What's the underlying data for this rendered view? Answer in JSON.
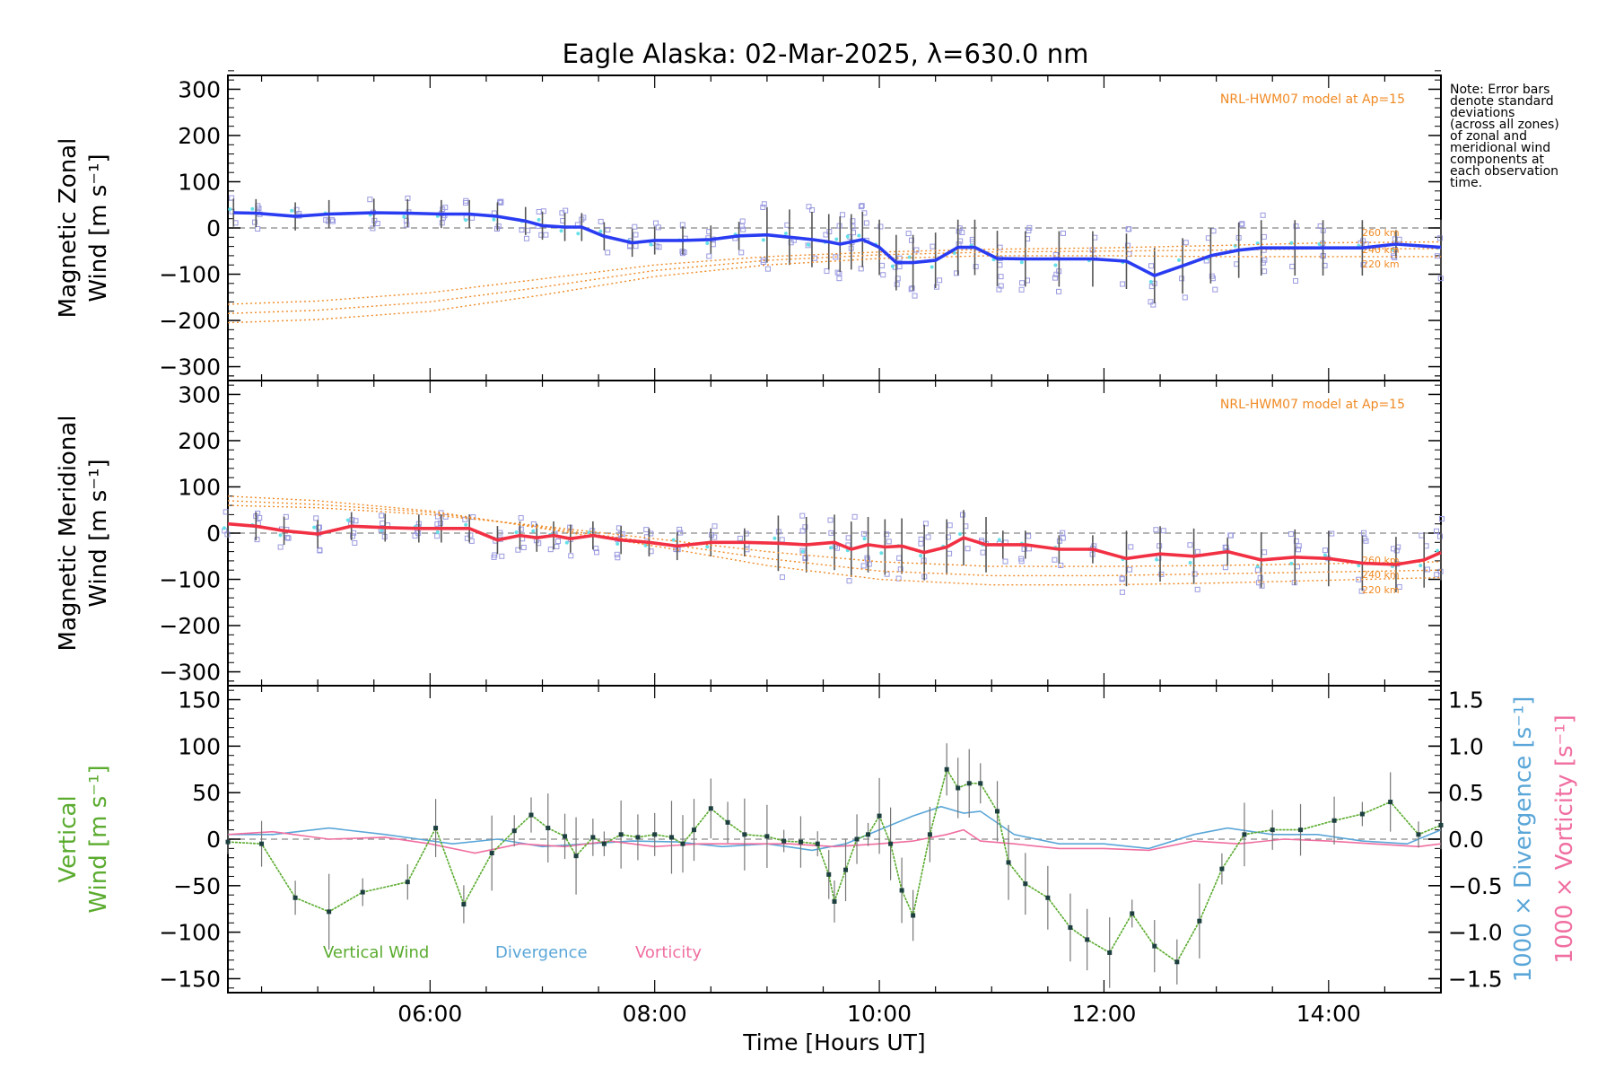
{
  "title": "Eagle Alaska: 02-Mar-2025, λ=630.0 nm",
  "note": [
    "Note: Error bars",
    "denote standard",
    "deviations",
    "(across all zones)",
    "of zonal and",
    "meridional wind",
    "components at",
    "each observation",
    "time."
  ],
  "colors": {
    "zonal": "#2a3cf2",
    "meridional": "#f23043",
    "vertical": "#5aab2e",
    "divergence": "#5aa6d8",
    "vorticity": "#f06ea0",
    "model": "#f08a24",
    "scatter": "#9a9ae0",
    "errorbar": "#555555",
    "cyan_point": "#66e0e8"
  },
  "chart_data": [
    {
      "type": "line",
      "panel": "zonal",
      "ylabel_line1": "Magnetic Zonal",
      "ylabel_line2": "Wind [m s⁻¹]",
      "ylim": [
        -330,
        330
      ],
      "yticks": [
        300,
        200,
        100,
        0,
        -100,
        -200,
        -300
      ],
      "xlim": [
        4.2,
        15.0
      ],
      "model_label": "NRL-HWM07 model at Ap=15",
      "model_alt_labels": [
        "260 km",
        "240 km",
        "220 km"
      ],
      "series": [
        {
          "name": "Zonal wind",
          "x": [
            4.25,
            4.45,
            4.8,
            5.1,
            5.5,
            5.8,
            6.1,
            6.35,
            6.6,
            6.85,
            7.0,
            7.2,
            7.35,
            7.55,
            7.8,
            8.0,
            8.25,
            8.5,
            8.75,
            9.0,
            9.2,
            9.4,
            9.55,
            9.65,
            9.75,
            9.85,
            10.0,
            10.15,
            10.3,
            10.5,
            10.7,
            10.85,
            11.05,
            11.3,
            11.6,
            11.9,
            12.2,
            12.45,
            12.7,
            12.95,
            13.2,
            13.4,
            13.7,
            13.95,
            14.3,
            14.6,
            15.0
          ],
          "y": [
            33,
            32,
            25,
            30,
            33,
            32,
            30,
            30,
            25,
            15,
            5,
            2,
            2,
            -18,
            -32,
            -27,
            -27,
            -25,
            -17,
            -15,
            -20,
            -25,
            -30,
            -35,
            -30,
            -25,
            -42,
            -75,
            -75,
            -70,
            -42,
            -42,
            -66,
            -67,
            -67,
            -67,
            -72,
            -103,
            -82,
            -60,
            -48,
            -43,
            -43,
            -43,
            -43,
            -35,
            -42
          ]
        }
      ],
      "models": [
        {
          "label": "260 km",
          "x": [
            4.2,
            5,
            6,
            7,
            8,
            9,
            10,
            11,
            12,
            13,
            14,
            15
          ],
          "y": [
            -165,
            -158,
            -140,
            -110,
            -80,
            -62,
            -52,
            -46,
            -43,
            -38,
            -32,
            -30
          ]
        },
        {
          "label": "240 km",
          "x": [
            4.2,
            5,
            6,
            7,
            8,
            9,
            10,
            11,
            12,
            13,
            14,
            15
          ],
          "y": [
            -185,
            -178,
            -160,
            -128,
            -92,
            -70,
            -58,
            -52,
            -50,
            -48,
            -45,
            -45
          ]
        },
        {
          "label": "220 km",
          "x": [
            4.2,
            5,
            6,
            7,
            8,
            9,
            10,
            11,
            12,
            13,
            14,
            15
          ],
          "y": [
            -205,
            -198,
            -180,
            -145,
            -105,
            -80,
            -66,
            -60,
            -60,
            -62,
            -62,
            -62
          ]
        }
      ]
    },
    {
      "type": "line",
      "panel": "meridional",
      "ylabel_line1": "Magnetic Meridional",
      "ylabel_line2": "Wind [m s⁻¹]",
      "ylim": [
        -330,
        330
      ],
      "yticks": [
        300,
        200,
        100,
        0,
        -100,
        -200,
        -300
      ],
      "xlim": [
        4.2,
        15.0
      ],
      "model_label": "NRL-HWM07 model at Ap=15",
      "model_alt_labels": [
        "260 km",
        "240 km",
        "220 km"
      ],
      "series": [
        {
          "name": "Meridional wind",
          "x": [
            4.2,
            4.45,
            4.7,
            5.0,
            5.3,
            5.6,
            5.9,
            6.1,
            6.35,
            6.6,
            6.8,
            6.95,
            7.1,
            7.25,
            7.45,
            7.7,
            7.95,
            8.2,
            8.5,
            8.8,
            9.1,
            9.35,
            9.6,
            9.75,
            9.9,
            10.05,
            10.2,
            10.4,
            10.6,
            10.75,
            10.95,
            11.1,
            11.3,
            11.6,
            11.9,
            12.2,
            12.5,
            12.8,
            13.1,
            13.4,
            13.7,
            14.0,
            14.3,
            14.6,
            14.85,
            15.0
          ],
          "y": [
            20,
            15,
            5,
            -2,
            15,
            12,
            10,
            10,
            10,
            -15,
            -5,
            -10,
            -5,
            -12,
            -5,
            -15,
            -20,
            -28,
            -20,
            -20,
            -22,
            -25,
            -20,
            -35,
            -25,
            -30,
            -28,
            -42,
            -30,
            -10,
            -25,
            -25,
            -25,
            -35,
            -35,
            -55,
            -45,
            -50,
            -40,
            -58,
            -52,
            -55,
            -65,
            -68,
            -58,
            -42
          ]
        }
      ],
      "models": [
        {
          "label": "260 km",
          "x": [
            4.2,
            5,
            6,
            7,
            8,
            9,
            10,
            11,
            12,
            13,
            14,
            15
          ],
          "y": [
            60,
            55,
            40,
            15,
            -12,
            -40,
            -62,
            -72,
            -72,
            -70,
            -66,
            -62
          ]
        },
        {
          "label": "240 km",
          "x": [
            4.2,
            5,
            6,
            7,
            8,
            9,
            10,
            11,
            12,
            13,
            14,
            15
          ],
          "y": [
            70,
            62,
            45,
            12,
            -20,
            -55,
            -82,
            -92,
            -92,
            -88,
            -84,
            -80
          ]
        },
        {
          "label": "220 km",
          "x": [
            4.2,
            5,
            6,
            7,
            8,
            9,
            10,
            11,
            12,
            13,
            14,
            15
          ],
          "y": [
            80,
            70,
            48,
            10,
            -28,
            -70,
            -100,
            -112,
            -112,
            -108,
            -102,
            -96
          ]
        }
      ]
    },
    {
      "type": "line",
      "panel": "vertical",
      "ylabel_line1": "Vertical",
      "ylabel_line2": "Wind [m s⁻¹]",
      "ylim": [
        -165,
        165
      ],
      "yticks": [
        150,
        100,
        50,
        0,
        -50,
        -100,
        -150
      ],
      "y2label_div": "1000 × Divergence [s⁻¹]",
      "y2label_vor": "1000 × Vorticity [s⁻¹]",
      "y2lim": [
        -1.65,
        1.65
      ],
      "y2ticks": [
        "1.5",
        "1.0",
        "0.5",
        "0.0",
        "-0.5",
        "-1.0",
        "-1.5"
      ],
      "xlabel": "Time [Hours UT]",
      "xticks": [
        "06:00",
        "08:00",
        "10:00",
        "12:00",
        "14:00"
      ],
      "xlim": [
        4.2,
        15.0
      ],
      "legend": [
        "Vertical Wind",
        "Divergence",
        "Vorticity"
      ],
      "series": [
        {
          "name": "Vertical Wind",
          "x": [
            4.2,
            4.5,
            4.8,
            5.1,
            5.4,
            5.8,
            6.05,
            6.3,
            6.55,
            6.75,
            6.9,
            7.05,
            7.2,
            7.3,
            7.45,
            7.55,
            7.7,
            7.85,
            8.0,
            8.15,
            8.25,
            8.35,
            8.5,
            8.65,
            8.8,
            9.0,
            9.15,
            9.3,
            9.45,
            9.55,
            9.6,
            9.7,
            9.8,
            9.9,
            10.0,
            10.1,
            10.2,
            10.3,
            10.45,
            10.6,
            10.7,
            10.8,
            10.9,
            11.05,
            11.15,
            11.3,
            11.5,
            11.7,
            11.85,
            12.05,
            12.25,
            12.45,
            12.65,
            12.85,
            13.05,
            13.25,
            13.5,
            13.75,
            14.05,
            14.3,
            14.55,
            14.8,
            15.0
          ],
          "y": [
            -3,
            -5,
            -63,
            -78,
            -57,
            -46,
            12,
            -70,
            -15,
            9,
            26,
            12,
            3,
            -18,
            2,
            -5,
            5,
            2,
            5,
            2,
            -5,
            10,
            33,
            18,
            5,
            3,
            -2,
            -3,
            -5,
            -38,
            -67,
            -33,
            0,
            5,
            25,
            -5,
            -55,
            -82,
            5,
            75,
            55,
            60,
            60,
            30,
            -25,
            -48,
            -63,
            -95,
            -108,
            -122,
            -80,
            -115,
            -132,
            -88,
            -32,
            5,
            10,
            10,
            20,
            27,
            40,
            5,
            15
          ]
        },
        {
          "name": "Divergence",
          "x": [
            4.2,
            4.6,
            5.1,
            5.6,
            5.9,
            6.2,
            6.6,
            7.0,
            7.4,
            7.8,
            8.2,
            8.6,
            9.0,
            9.4,
            9.7,
            10.0,
            10.3,
            10.55,
            10.75,
            10.9,
            11.2,
            11.6,
            12.0,
            12.4,
            12.8,
            13.1,
            13.5,
            13.9,
            14.3,
            14.7,
            15.0
          ],
          "y": [
            0.05,
            0.05,
            0.12,
            0.05,
            0.0,
            -0.05,
            0.0,
            -0.08,
            -0.05,
            -0.02,
            -0.03,
            -0.08,
            -0.05,
            -0.12,
            -0.05,
            0.1,
            0.25,
            0.35,
            0.28,
            0.3,
            0.05,
            -0.05,
            -0.05,
            -0.1,
            0.05,
            0.12,
            0.05,
            0.05,
            -0.02,
            -0.05,
            0.1
          ]
        },
        {
          "name": "Vorticity",
          "x": [
            4.2,
            4.6,
            5.1,
            5.6,
            6.0,
            6.4,
            6.8,
            7.2,
            7.6,
            8.0,
            8.4,
            8.8,
            9.2,
            9.6,
            10.0,
            10.3,
            10.6,
            10.75,
            10.9,
            11.2,
            11.6,
            12.0,
            12.4,
            12.8,
            13.2,
            13.6,
            14.0,
            14.4,
            14.8,
            15.0
          ],
          "y": [
            0.05,
            0.08,
            0.0,
            0.02,
            -0.05,
            -0.15,
            -0.05,
            -0.08,
            -0.02,
            -0.08,
            -0.05,
            -0.05,
            -0.05,
            -0.08,
            -0.05,
            -0.02,
            0.05,
            0.1,
            -0.02,
            -0.05,
            -0.1,
            -0.1,
            -0.12,
            -0.02,
            -0.05,
            0.0,
            -0.02,
            -0.05,
            -0.08,
            -0.05
          ]
        }
      ]
    }
  ]
}
